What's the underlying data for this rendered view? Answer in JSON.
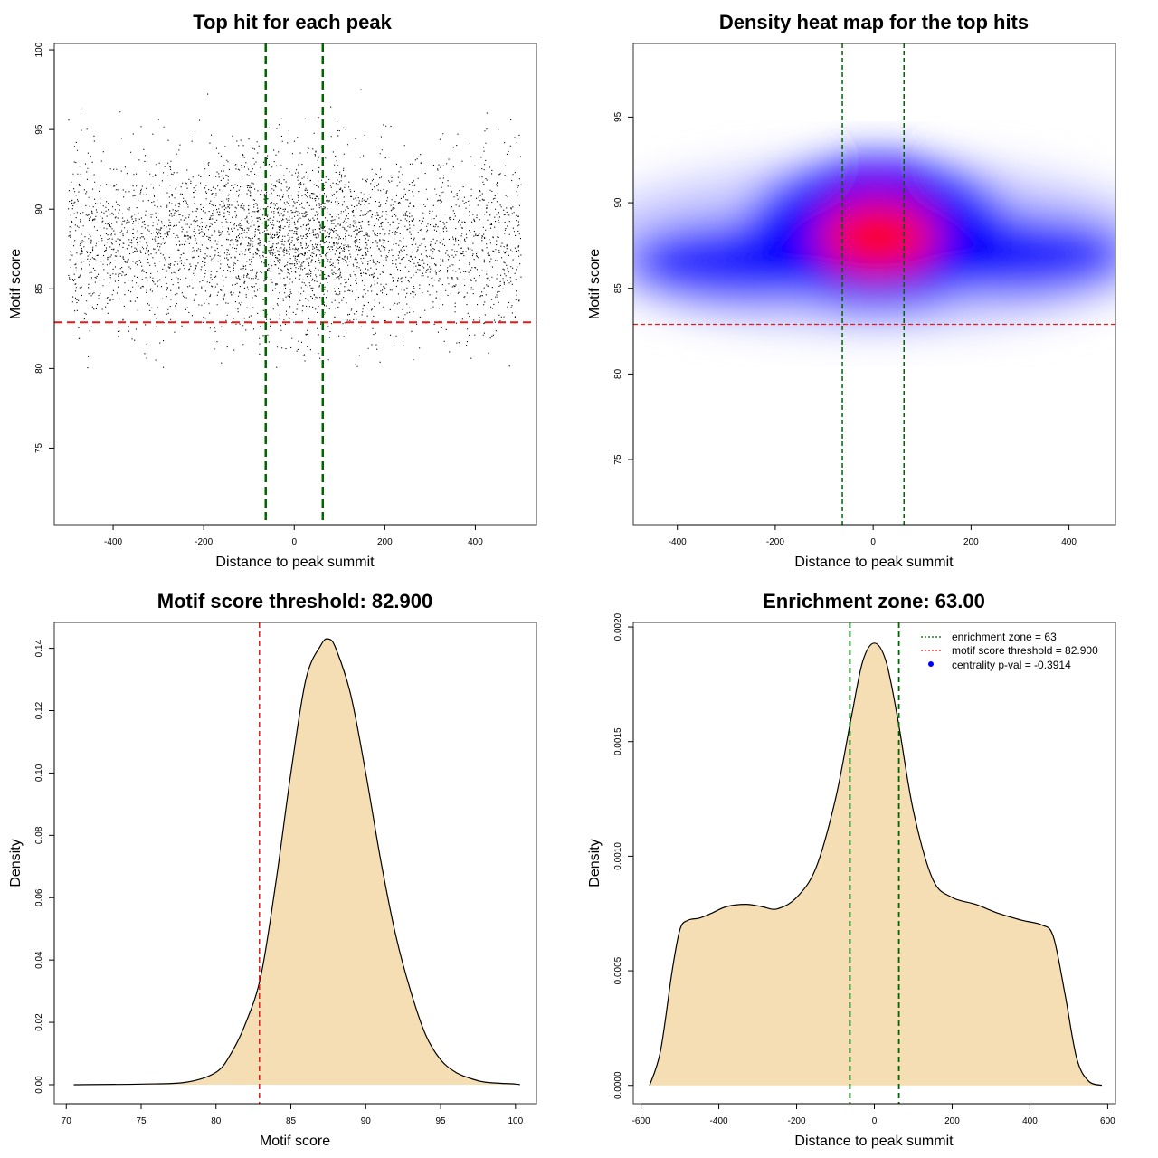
{
  "colors": {
    "point": "#000000",
    "threshold": "#e31a1c",
    "zone": "#006400",
    "fill": "#f5deb3",
    "heat_low": "#ffffff",
    "heat_mid": "#0000ff",
    "heat_high": "#ff0000",
    "legend_dot": "#0000ff"
  },
  "chart_data": [
    {
      "type": "scatter",
      "title": "Top hit for each peak",
      "xlabel": "Distance to peak summit",
      "ylabel": "Motif score",
      "xlim": [
        -530,
        535
      ],
      "ylim": [
        70.2,
        100.4
      ],
      "xticks": [
        -400,
        -200,
        0,
        200,
        400
      ],
      "yticks": [
        75,
        80,
        85,
        90,
        95,
        100
      ],
      "x_range_data": [
        -500,
        500
      ],
      "n_points": 15000,
      "center_score": 88,
      "score_sd": 2.8,
      "hlines": [
        82.9
      ],
      "vlines": [
        -63,
        63
      ]
    },
    {
      "type": "heatmap",
      "title": "Density heat map for the top hits",
      "xlabel": "Distance to peak summit",
      "ylabel": "Motif score",
      "xlim": [
        -490,
        495
      ],
      "ylim": [
        71.2,
        99.3
      ],
      "xticks": [
        -400,
        -200,
        0,
        200,
        400
      ],
      "yticks": [
        75,
        80,
        85,
        90,
        95
      ],
      "hot_center": [
        10,
        88
      ],
      "hlines": [
        82.9
      ],
      "vlines": [
        -63,
        63
      ]
    },
    {
      "type": "area",
      "title": "Motif score threshold: 82.900",
      "xlabel": "Motif score",
      "ylabel": "Density",
      "xlim": [
        69.2,
        101.4
      ],
      "ylim": [
        -0.0061,
        0.1483
      ],
      "xticks": [
        70,
        75,
        80,
        85,
        90,
        95,
        100
      ],
      "yticks": [
        "0.00",
        "0.02",
        "0.04",
        "0.06",
        "0.08",
        "0.10",
        "0.12",
        "0.14"
      ],
      "x": [
        70.5,
        75,
        78,
        80,
        81,
        82,
        83,
        84,
        85,
        86,
        87,
        87.5,
        88,
        89,
        90,
        91,
        92,
        93,
        94,
        95,
        96,
        97,
        98,
        100,
        100.3
      ],
      "y": [
        0,
        0.0002,
        0.0008,
        0.004,
        0.01,
        0.02,
        0.035,
        0.065,
        0.1,
        0.13,
        0.141,
        0.143,
        0.14,
        0.125,
        0.1,
        0.072,
        0.048,
        0.03,
        0.016,
        0.008,
        0.004,
        0.002,
        0.0008,
        0.0002,
        0
      ],
      "vlines": [
        82.9
      ]
    },
    {
      "type": "area",
      "title": "Enrichment zone: 63.00",
      "xlabel": "Distance to peak summit",
      "ylabel": "Density",
      "xlim": [
        -620,
        620
      ],
      "ylim": [
        -8e-05,
        0.00202
      ],
      "xticks": [
        -600,
        -400,
        -200,
        0,
        200,
        400,
        600
      ],
      "yticks": [
        "0.0000",
        "0.0005",
        "0.0010",
        "0.0015",
        "0.0020"
      ],
      "x": [
        -578,
        -550,
        -520,
        -500,
        -480,
        -450,
        -420,
        -380,
        -330,
        -290,
        -250,
        -200,
        -150,
        -100,
        -60,
        -30,
        0,
        30,
        60,
        100,
        150,
        200,
        260,
        320,
        380,
        430,
        460,
        490,
        520,
        550,
        585
      ],
      "y": [
        0,
        0.00015,
        0.0005,
        0.00068,
        0.00072,
        0.00073,
        0.00075,
        0.00078,
        0.00079,
        0.00078,
        0.00077,
        0.00082,
        0.00095,
        0.00125,
        0.0016,
        0.00185,
        0.00193,
        0.00185,
        0.0016,
        0.0012,
        0.0009,
        0.00082,
        0.00079,
        0.00075,
        0.00072,
        0.0007,
        0.00065,
        0.0004,
        0.00012,
        2e-05,
        0
      ],
      "vlines": [
        -63,
        63
      ],
      "legend": [
        {
          "label": "enrichment zone = 63",
          "style": "zone-line"
        },
        {
          "label": "motif score threshold = 82.900",
          "style": "threshold-line"
        },
        {
          "label": "centrality p-val = -0.3914",
          "style": "dot"
        }
      ]
    }
  ]
}
